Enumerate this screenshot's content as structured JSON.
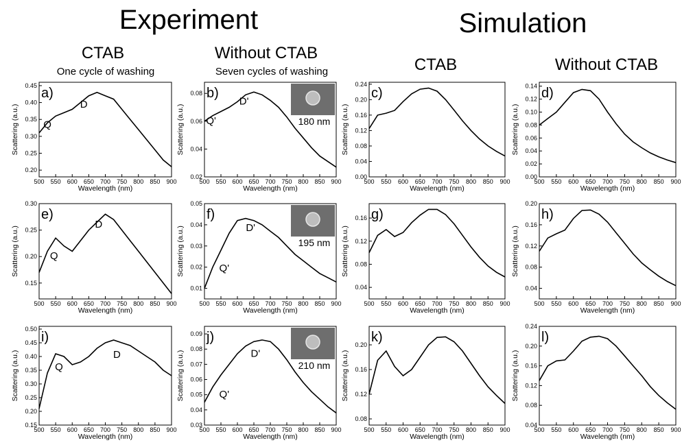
{
  "headers": {
    "experiment": "Experiment",
    "simulation": "Simulation",
    "columns": [
      "CTAB",
      "Without CTAB",
      "CTAB",
      "Without CTAB"
    ],
    "notes": [
      "One cycle of washing",
      "Seven cycles of washing"
    ]
  },
  "chart_data": [
    {
      "type": "line",
      "panel_label": "a)",
      "xlabel": "Wavelength (nm)",
      "ylabel": "Scattering (a.u.)",
      "annotations": [
        "Q",
        "D"
      ],
      "color": "#000000",
      "x": [
        500,
        525,
        550,
        575,
        600,
        625,
        650,
        675,
        700,
        725,
        750,
        775,
        800,
        825,
        850,
        875,
        900
      ],
      "values": [
        0.31,
        0.34,
        0.36,
        0.37,
        0.38,
        0.4,
        0.42,
        0.43,
        0.42,
        0.41,
        0.38,
        0.35,
        0.32,
        0.29,
        0.26,
        0.23,
        0.21
      ],
      "xlim": [
        500,
        900
      ],
      "xticks": [
        500,
        550,
        600,
        650,
        700,
        750,
        800,
        850,
        900
      ],
      "ylim": [
        0.18,
        0.46
      ],
      "yticks": [
        {
          "value": 0.2,
          "label": "0.20"
        },
        0.25,
        {
          "value": 0.3,
          "label": "0.30"
        },
        0.35,
        {
          "value": 0.4,
          "label": "0.40"
        },
        0.45
      ]
    },
    {
      "type": "line",
      "panel_label": "b)",
      "xlabel": "Wavelength (nm)",
      "ylabel": "Scattering (a.u.)",
      "annotations": [
        "D'",
        "Q'"
      ],
      "inset_label": "180 nm",
      "color": "#000000",
      "x": [
        500,
        525,
        550,
        575,
        600,
        625,
        650,
        675,
        700,
        725,
        750,
        775,
        800,
        825,
        850,
        875,
        900
      ],
      "values": [
        0.06,
        0.064,
        0.067,
        0.07,
        0.074,
        0.079,
        0.081,
        0.079,
        0.075,
        0.07,
        0.063,
        0.055,
        0.048,
        0.041,
        0.035,
        0.031,
        0.027
      ],
      "xlim": [
        500,
        900
      ],
      "xticks": [
        500,
        550,
        600,
        650,
        700,
        750,
        800,
        850,
        900
      ],
      "ylim": [
        0.02,
        0.088
      ],
      "yticks": [
        0.02,
        0.04,
        0.06,
        0.08
      ]
    },
    {
      "type": "line",
      "panel_label": "c)",
      "xlabel": "Wavelength (nm)",
      "ylabel": "Scattering (a.u.)",
      "annotations": [],
      "color": "#000000",
      "x": [
        500,
        525,
        550,
        575,
        600,
        625,
        650,
        675,
        700,
        725,
        750,
        775,
        800,
        825,
        850,
        875,
        900
      ],
      "values": [
        0.125,
        0.16,
        0.165,
        0.172,
        0.195,
        0.215,
        0.227,
        0.23,
        0.222,
        0.2,
        0.173,
        0.145,
        0.12,
        0.098,
        0.08,
        0.066,
        0.054
      ],
      "xlim": [
        500,
        900
      ],
      "xticks": [
        500,
        550,
        600,
        650,
        700,
        750,
        800,
        850,
        900
      ],
      "ylim": [
        0,
        0.245
      ],
      "yticks": [
        {
          "value": 0,
          "label": "0.00"
        },
        0.04,
        0.08,
        0.12,
        0.16,
        {
          "value": 0.2,
          "label": "0.20"
        },
        0.24
      ]
    },
    {
      "type": "line",
      "panel_label": "d)",
      "xlabel": "Wavelength (nm)",
      "ylabel": "Scattering (a.u.)",
      "annotations": [],
      "color": "#000000",
      "x": [
        500,
        525,
        550,
        575,
        600,
        625,
        650,
        675,
        700,
        725,
        750,
        775,
        800,
        825,
        850,
        875,
        900
      ],
      "values": [
        0.08,
        0.09,
        0.1,
        0.115,
        0.13,
        0.135,
        0.133,
        0.12,
        0.1,
        0.082,
        0.066,
        0.054,
        0.045,
        0.037,
        0.031,
        0.026,
        0.022
      ],
      "xlim": [
        500,
        900
      ],
      "xticks": [
        500,
        550,
        600,
        650,
        700,
        750,
        800,
        850,
        900
      ],
      "ylim": [
        0,
        0.146
      ],
      "yticks": [
        {
          "value": 0,
          "label": "0.00"
        },
        0.02,
        0.04,
        0.06,
        0.08,
        {
          "value": 0.1,
          "label": "0.10"
        },
        0.12,
        0.14
      ]
    },
    {
      "type": "line",
      "panel_label": "e)",
      "xlabel": "Wavelength (nm)",
      "ylabel": "Scattering (a.u.)",
      "annotations": [
        "Q",
        "D"
      ],
      "color": "#000000",
      "x": [
        500,
        525,
        550,
        575,
        600,
        625,
        650,
        675,
        700,
        725,
        750,
        775,
        800,
        825,
        850,
        875,
        900
      ],
      "values": [
        0.17,
        0.21,
        0.235,
        0.22,
        0.21,
        0.23,
        0.25,
        0.265,
        0.28,
        0.27,
        0.25,
        0.23,
        0.21,
        0.19,
        0.17,
        0.15,
        0.13
      ],
      "xlim": [
        500,
        900
      ],
      "xticks": [
        500,
        550,
        600,
        650,
        700,
        750,
        800,
        850,
        900
      ],
      "ylim": [
        0.12,
        0.3
      ],
      "yticks": [
        0.15,
        {
          "value": 0.2,
          "label": "0.20"
        },
        0.25,
        {
          "value": 0.3,
          "label": "0.30"
        }
      ]
    },
    {
      "type": "line",
      "panel_label": "f)",
      "xlabel": "Wavelength (nm)",
      "ylabel": "Scattering (a.u.)",
      "annotations": [
        "D'",
        "Q'"
      ],
      "inset_label": "195 nm",
      "color": "#000000",
      "x": [
        500,
        525,
        550,
        575,
        600,
        625,
        650,
        675,
        700,
        725,
        750,
        775,
        800,
        825,
        850,
        875,
        900
      ],
      "values": [
        0.01,
        0.02,
        0.028,
        0.036,
        0.042,
        0.043,
        0.042,
        0.04,
        0.037,
        0.034,
        0.03,
        0.026,
        0.023,
        0.02,
        0.017,
        0.015,
        0.013
      ],
      "xlim": [
        500,
        900
      ],
      "xticks": [
        500,
        550,
        600,
        650,
        700,
        750,
        800,
        850,
        900
      ],
      "ylim": [
        0.005,
        0.05
      ],
      "yticks": [
        0.01,
        0.02,
        0.03,
        0.04,
        0.05
      ]
    },
    {
      "type": "line",
      "panel_label": "g)",
      "xlabel": "Wavelength (nm)",
      "ylabel": "Scattering (a.u.)",
      "annotations": [],
      "color": "#000000",
      "x": [
        500,
        525,
        550,
        575,
        600,
        625,
        650,
        675,
        700,
        725,
        750,
        775,
        800,
        825,
        850,
        875,
        900
      ],
      "values": [
        0.1,
        0.13,
        0.14,
        0.128,
        0.135,
        0.152,
        0.165,
        0.175,
        0.175,
        0.166,
        0.15,
        0.13,
        0.11,
        0.092,
        0.077,
        0.066,
        0.058
      ],
      "xlim": [
        500,
        900
      ],
      "xticks": [
        500,
        550,
        600,
        650,
        700,
        750,
        800,
        850,
        900
      ],
      "ylim": [
        0.02,
        0.185
      ],
      "yticks": [
        0.04,
        0.08,
        0.12,
        0.16
      ]
    },
    {
      "type": "line",
      "panel_label": "h)",
      "xlabel": "Wavelength (nm)",
      "ylabel": "Scattering (a.u.)",
      "annotations": [],
      "color": "#000000",
      "x": [
        500,
        525,
        550,
        575,
        600,
        625,
        650,
        675,
        700,
        725,
        750,
        775,
        800,
        825,
        850,
        875,
        900
      ],
      "values": [
        0.11,
        0.135,
        0.143,
        0.15,
        0.172,
        0.187,
        0.188,
        0.18,
        0.165,
        0.145,
        0.125,
        0.105,
        0.088,
        0.075,
        0.063,
        0.053,
        0.045
      ],
      "xlim": [
        500,
        900
      ],
      "xticks": [
        500,
        550,
        600,
        650,
        700,
        750,
        800,
        850,
        900
      ],
      "ylim": [
        0.02,
        0.2
      ],
      "yticks": [
        0.04,
        0.08,
        0.12,
        0.16,
        {
          "value": 0.2,
          "label": "0.20"
        }
      ]
    },
    {
      "type": "line",
      "panel_label": "i)",
      "xlabel": "Wavelength (nm)",
      "ylabel": "Scattering (a.u.)",
      "annotations": [
        "Q",
        "D"
      ],
      "color": "#000000",
      "x": [
        500,
        525,
        550,
        575,
        600,
        625,
        650,
        675,
        700,
        725,
        750,
        775,
        800,
        825,
        850,
        875,
        900
      ],
      "values": [
        0.21,
        0.34,
        0.41,
        0.4,
        0.37,
        0.38,
        0.4,
        0.43,
        0.45,
        0.46,
        0.45,
        0.44,
        0.42,
        0.4,
        0.38,
        0.35,
        0.33
      ],
      "xlim": [
        500,
        900
      ],
      "xticks": [
        500,
        550,
        600,
        650,
        700,
        750,
        800,
        850,
        900
      ],
      "ylim": [
        0.15,
        0.51
      ],
      "yticks": [
        0.15,
        {
          "value": 0.2,
          "label": "0.20"
        },
        0.25,
        {
          "value": 0.3,
          "label": "0.30"
        },
        0.35,
        {
          "value": 0.4,
          "label": "0.40"
        },
        0.45,
        {
          "value": 0.5,
          "label": "0.50"
        }
      ]
    },
    {
      "type": "line",
      "panel_label": "j)",
      "xlabel": "Wavelength (nm)",
      "ylabel": "Scattering (a.u.)",
      "annotations": [
        "D'",
        "Q'"
      ],
      "inset_label": "210 nm",
      "color": "#000000",
      "x": [
        500,
        525,
        550,
        575,
        600,
        625,
        650,
        675,
        700,
        725,
        750,
        775,
        800,
        825,
        850,
        875,
        900
      ],
      "values": [
        0.045,
        0.055,
        0.063,
        0.07,
        0.077,
        0.082,
        0.085,
        0.086,
        0.085,
        0.08,
        0.073,
        0.065,
        0.058,
        0.052,
        0.047,
        0.042,
        0.038
      ],
      "xlim": [
        500,
        900
      ],
      "xticks": [
        500,
        550,
        600,
        650,
        700,
        750,
        800,
        850,
        900
      ],
      "ylim": [
        0.03,
        0.095
      ],
      "yticks": [
        0.03,
        0.04,
        0.05,
        0.06,
        0.07,
        0.08,
        0.09
      ]
    },
    {
      "type": "line",
      "panel_label": "k)",
      "xlabel": "Wavelength (nm)",
      "ylabel": "Scattering (a.u.)",
      "annotations": [],
      "color": "#000000",
      "x": [
        500,
        525,
        550,
        575,
        600,
        625,
        650,
        675,
        700,
        725,
        750,
        775,
        800,
        825,
        850,
        875,
        900
      ],
      "values": [
        0.12,
        0.175,
        0.19,
        0.165,
        0.15,
        0.16,
        0.18,
        0.2,
        0.212,
        0.213,
        0.205,
        0.19,
        0.17,
        0.15,
        0.132,
        0.118,
        0.105
      ],
      "xlim": [
        500,
        900
      ],
      "xticks": [
        500,
        550,
        600,
        650,
        700,
        750,
        800,
        850,
        900
      ],
      "ylim": [
        0.07,
        0.23
      ],
      "yticks": [
        0.08,
        0.12,
        0.16,
        {
          "value": 0.2,
          "label": "0.20"
        }
      ]
    },
    {
      "type": "line",
      "panel_label": "l)",
      "xlabel": "Wavelength (nm)",
      "ylabel": "Scattering (a.u.)",
      "annotations": [],
      "color": "#000000",
      "x": [
        500,
        525,
        550,
        575,
        600,
        625,
        650,
        675,
        700,
        725,
        750,
        775,
        800,
        825,
        850,
        875,
        900
      ],
      "values": [
        0.13,
        0.16,
        0.17,
        0.172,
        0.19,
        0.21,
        0.218,
        0.22,
        0.215,
        0.2,
        0.18,
        0.16,
        0.14,
        0.118,
        0.1,
        0.085,
        0.072
      ],
      "xlim": [
        500,
        900
      ],
      "xticks": [
        500,
        550,
        600,
        650,
        700,
        750,
        800,
        850,
        900
      ],
      "ylim": [
        0.04,
        0.24
      ],
      "yticks": [
        0.04,
        0.08,
        0.12,
        0.16,
        {
          "value": 0.2,
          "label": "0.20"
        },
        0.24
      ]
    }
  ]
}
